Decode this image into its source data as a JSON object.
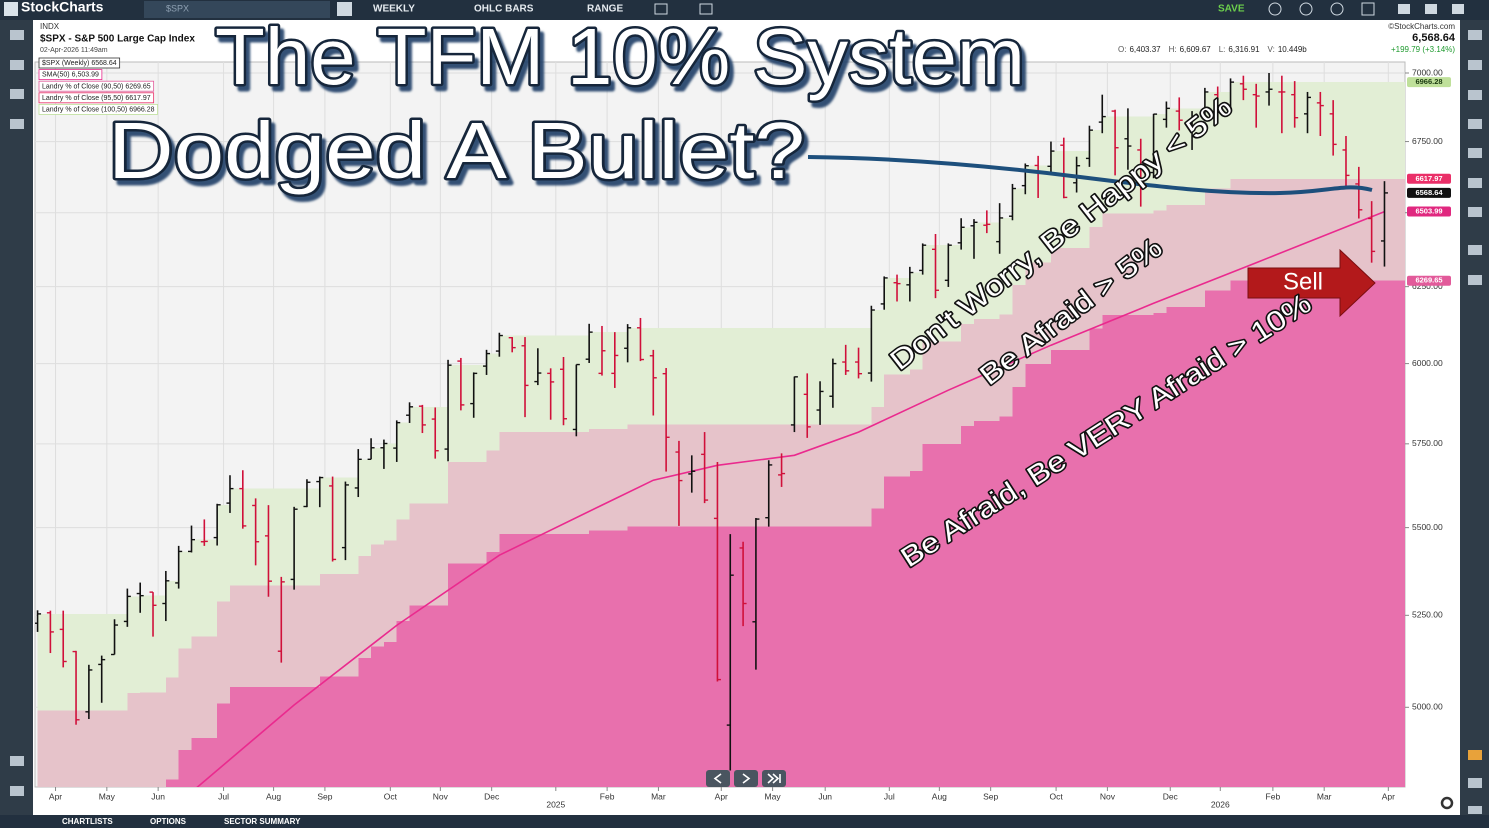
{
  "toolbar": {
    "logo": "StockCharts",
    "search": "$SPX",
    "period": "WEEKLY",
    "chart_style": "OHLC BARS",
    "range": "RANGE",
    "save": "SAVE"
  },
  "header": {
    "exchange": "INDX",
    "symbol_name": "$SPX - S&P 500 Large Cap Index",
    "timestamp": "02-Apr-2026 11:49am",
    "copyright": "©StockCharts.com",
    "last": "6,568.64",
    "stats": [
      {
        "label": "O:",
        "value": "6,403.37"
      },
      {
        "label": "H:",
        "value": "6,609.67"
      },
      {
        "label": "L:",
        "value": "6,316.91"
      },
      {
        "label": "V:",
        "value": "10.449b"
      }
    ],
    "change": "+199.79 (+3.14%)"
  },
  "annotations": {
    "title": [
      "The TFM 10% System",
      "Dodged A Bullet?"
    ],
    "zones": [
      "Don't Worry, Be Happy < 5%",
      "Be Afraid > 5%",
      "Be Afraid, Be VERY Afraid > 10%"
    ],
    "signal": "Sell"
  },
  "footer": {
    "tabs": [
      "CHARTLISTS",
      "OPTIONS",
      "SECTOR SUMMARY"
    ]
  },
  "chart_data": {
    "type": "ohlc",
    "log_scale": true,
    "grid": true,
    "ylim": [
      4793,
      7041
    ],
    "yticks": [
      {
        "value": 5000,
        "label": "5000.00"
      },
      {
        "value": 5250,
        "label": "5250.00"
      },
      {
        "value": 5500,
        "label": "5500.00"
      },
      {
        "value": 5750,
        "label": "5750.00"
      },
      {
        "value": 6000,
        "label": "6000.00"
      },
      {
        "value": 6250,
        "label": "6250.00"
      },
      {
        "value": 6500,
        "label": "6500.00"
      },
      {
        "value": 6750,
        "label": "6750.00"
      },
      {
        "value": 7000,
        "label": "7000.00"
      }
    ],
    "xlim": [
      -0.2,
      106.6
    ],
    "xticks": [
      {
        "value": 1.4,
        "label": "Apr"
      },
      {
        "value": 5.4,
        "label": "May"
      },
      {
        "value": 9.4,
        "label": "Jun"
      },
      {
        "value": 14.5,
        "label": "Jul"
      },
      {
        "value": 18.4,
        "label": "Aug"
      },
      {
        "value": 22.4,
        "label": "Sep"
      },
      {
        "value": 27.5,
        "label": "Oct"
      },
      {
        "value": 31.4,
        "label": "Nov"
      },
      {
        "value": 35.4,
        "label": "Dec"
      },
      {
        "value": 40.4,
        "label": "2025"
      },
      {
        "value": 44.4,
        "label": "Feb"
      },
      {
        "value": 48.4,
        "label": "Mar"
      },
      {
        "value": 53.3,
        "label": "Apr"
      },
      {
        "value": 57.3,
        "label": "May"
      },
      {
        "value": 61.4,
        "label": "Jun"
      },
      {
        "value": 66.4,
        "label": "Jul"
      },
      {
        "value": 70.3,
        "label": "Aug"
      },
      {
        "value": 74.3,
        "label": "Sep"
      },
      {
        "value": 79.4,
        "label": "Oct"
      },
      {
        "value": 83.4,
        "label": "Nov"
      },
      {
        "value": 88.3,
        "label": "Dec"
      },
      {
        "value": 92.2,
        "label": "2026"
      },
      {
        "value": 96.3,
        "label": "Feb"
      },
      {
        "value": 100.3,
        "label": "Mar"
      },
      {
        "value": 105.3,
        "label": "Apr"
      }
    ],
    "price": {
      "name": "$SPX (Weekly)",
      "up_color": "#111111",
      "down_color": "#d0103a",
      "tag_color": "#111111",
      "tag_text_color": "#ffffff",
      "open": [
        5228,
        5257,
        5211,
        5150,
        4988,
        5115,
        5142,
        5233,
        5311,
        5315,
        5283,
        5341,
        5431,
        5459,
        5471,
        5572,
        5615,
        5565,
        5476,
        5151,
        5351,
        5562,
        5636,
        5623,
        5442,
        5617,
        5703,
        5738,
        5737,
        5838,
        5866,
        5826,
        5734,
        6008,
        5874,
        5992,
        6040,
        6083,
        6057,
        5943,
        5969,
        5982,
        5794,
        6014,
        5969,
        5969,
        6049,
        6115,
        6025,
        5968,
        5725,
        5659,
        5718,
        5527,
        4953,
        5441,
        5232,
        5529,
        5656,
        5808,
        5903,
        5854,
        5897,
        6005,
        6005,
        5970,
        6193,
        6263,
        6256,
        6304,
        6375,
        6271,
        6397,
        6455,
        6457,
        6401,
        6488,
        6594,
        6665,
        6662,
        6737,
        6604,
        6690,
        6820,
        6860,
        6760,
        6720,
        6640,
        6830,
        6860,
        6810,
        6850,
        6920,
        6870,
        6960,
        6920,
        6930,
        6930,
        6920,
        6850,
        6890,
        6850,
        6720,
        6600,
        6480,
        6403.37
      ],
      "high": [
        5264,
        5263,
        5263,
        5152,
        5114,
        5139,
        5239,
        5325,
        5342,
        5315,
        5375,
        5447,
        5506,
        5524,
        5570,
        5655,
        5670,
        5586,
        5566,
        5358,
        5561,
        5643,
        5651,
        5651,
        5636,
        5734,
        5767,
        5763,
        5822,
        5878,
        5870,
        5862,
        6012,
        6018,
        5972,
        6044,
        6099,
        6085,
        6085,
        6049,
        5985,
        6021,
        5997,
        6128,
        6121,
        6101,
        6127,
        6147,
        6044,
        5986,
        5759,
        5715,
        5786,
        5695,
        5481,
        5459,
        5528,
        5700,
        5721,
        5959,
        5969,
        5944,
        6016,
        6060,
        6051,
        6187,
        6284,
        6290,
        6316,
        6395,
        6427,
        6395,
        6481,
        6478,
        6508,
        6533,
        6600,
        6672,
        6699,
        6750,
        6764,
        6696,
        6807,
        6920,
        6865,
        6870,
        6760,
        6850,
        6895,
        6910,
        6860,
        6945,
        6950,
        6980,
        6990,
        6960,
        7000,
        6990,
        6970,
        6930,
        6930,
        6900,
        6770,
        6660,
        6540,
        6609.67
      ],
      "low": [
        5204,
        5146,
        5107,
        4954,
        4969,
        5012,
        5142,
        5218,
        5257,
        5191,
        5234,
        5325,
        5428,
        5447,
        5448,
        5543,
        5497,
        5391,
        5302,
        5120,
        5322,
        5560,
        5560,
        5402,
        5406,
        5590,
        5703,
        5674,
        5695,
        5814,
        5783,
        5705,
        5697,
        5853,
        5830,
        5964,
        6022,
        6036,
        5832,
        5932,
        5824,
        5807,
        5773,
        6002,
        5962,
        5923,
        6004,
        6008,
        5837,
        5666,
        5505,
        5603,
        5572,
        5069,
        4835,
        5220,
        5101,
        5503,
        5620,
        5786,
        5768,
        5808,
        5861,
        5964,
        5953,
        5943,
        6174,
        6201,
        6201,
        6290,
        6212,
        6249,
        6374,
        6343,
        6430,
        6360,
        6474,
        6564,
        6551,
        6637,
        6550,
        6570,
        6660,
        6780,
        6630,
        6650,
        6521,
        6620,
        6800,
        6790,
        6720,
        6840,
        6820,
        6860,
        6900,
        6800,
        6880,
        6780,
        6800,
        6780,
        6770,
        6700,
        6590,
        6480,
        6330,
        6316.91
      ],
      "close": [
        5254,
        5204,
        5123,
        4967,
        5100,
        5128,
        5223,
        5303,
        5305,
        5278,
        5347,
        5431,
        5465,
        5460,
        5567,
        5615,
        5505,
        5459,
        5346,
        5344,
        5554,
        5634,
        5648,
        5408,
        5626,
        5703,
        5738,
        5751,
        5815,
        5864,
        5808,
        5729,
        5995,
        5870,
        5969,
        6032,
        6090,
        6051,
        5931,
        5970,
        5942,
        5827,
        5997,
        6101,
        6041,
        6026,
        6115,
        6013,
        5955,
        5770,
        5639,
        5667,
        5581,
        5074,
        5363,
        5283,
        5525,
        5686,
        5660,
        5958,
        5802,
        5912,
        6000,
        5977,
        5968,
        6173,
        6279,
        6260,
        6297,
        6389,
        6238,
        6389,
        6450,
        6467,
        6460,
        6482,
        6584,
        6664,
        6644,
        6716,
        6553,
        6664,
        6791,
        6840,
        6728,
        6734,
        6603,
        6849,
        6870,
        6827,
        6834,
        6930,
        6858,
        6966.28,
        6940,
        6915,
        6940,
        6930,
        6836,
        6910,
        6880,
        6740,
        6630,
        6510,
        6368,
        6568.64
      ]
    },
    "lines": [
      {
        "name": "SMA(50)",
        "color": "#ea2a8e",
        "tag_color": "#e0287f",
        "tag_text_color": "#ffffff",
        "value_label": "6,503.99",
        "x": [
          12,
          20,
          28,
          36,
          44,
          48,
          53,
          59,
          64,
          71,
          79,
          87,
          95,
          105
        ],
        "values": [
          4780,
          5006,
          5222,
          5420,
          5566,
          5640,
          5685,
          5715,
          5786,
          5916,
          6059,
          6195,
          6330,
          6503.99
        ]
      }
    ],
    "bands": {
      "x": [
        0,
        7,
        8,
        10,
        11,
        12,
        14,
        15,
        22,
        25,
        26,
        27,
        28,
        29,
        32,
        35,
        36,
        43,
        46,
        65,
        66,
        68,
        69,
        72,
        73,
        75,
        76,
        77,
        79,
        82,
        83,
        87,
        88,
        91,
        93
      ],
      "series": [
        {
          "name": "Landry % of Close (90,50)",
          "color": "#e870ad",
          "tag_color": "#e25a9a",
          "tag_text_color": "#ffffff",
          "values": [
            4729,
            4773,
            4775,
            4812,
            4888,
            4919,
            5010,
            5054,
            5083,
            5133,
            5164,
            5176,
            5234,
            5278,
            5396,
            5429,
            5481,
            5491,
            5504,
            5556,
            5651,
            5667,
            5750,
            5805,
            5820,
            5834,
            5926,
            5998,
            6044,
            6112,
            6156,
            6164,
            6183,
            6237,
            6269.65
          ]
        },
        {
          "name": "Landry % of Close (95,50)",
          "color": "#e6c3ca",
          "tag_color": "#ea2f68",
          "tag_text_color": "#ffffff",
          "values": [
            4991,
            5038,
            5040,
            5080,
            5159,
            5192,
            5289,
            5334,
            5366,
            5418,
            5451,
            5463,
            5524,
            5571,
            5695,
            5730,
            5786,
            5796,
            5809,
            5864,
            5965,
            5982,
            6070,
            6128,
            6144,
            6158,
            6255,
            6331,
            6380,
            6451,
            6498,
            6507,
            6527,
            6584,
            6617.97
          ]
        },
        {
          "name": "Landry % of Close (100,50)",
          "color": "#e2eed5",
          "tag_color": "#bfe09a",
          "tag_text_color": "#1a3a10",
          "values": [
            5254,
            5303,
            5305,
            5347,
            5431,
            5465,
            5567,
            5615,
            5648,
            5703,
            5738,
            5751,
            5815,
            5864,
            5995,
            6032,
            6090,
            6101,
            6115,
            6173,
            6279,
            6297,
            6389,
            6450,
            6467,
            6482,
            6584,
            6664,
            6716,
            6791,
            6840,
            6849,
            6870,
            6930,
            6966.28
          ]
        }
      ]
    }
  }
}
